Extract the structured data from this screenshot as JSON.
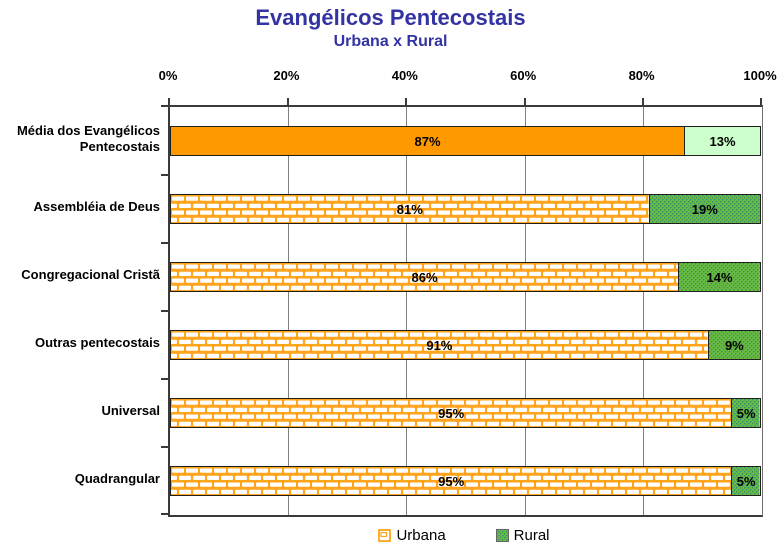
{
  "title": "Evangélicos Pentecostais",
  "subtitle": "Urbana x Rural",
  "colors": {
    "title": "#3333A3",
    "urbana_solid": "#FF9900",
    "urbana_brick_mortar": "#FFA41C",
    "urbana_brick_fill": "#FFFFFF",
    "rural_light": "#CCFFCC",
    "rural_green": "#6CBB3C",
    "rural_dot": "#2E8F79",
    "gridline": "#808080",
    "axis": "#3A3A3A"
  },
  "chart_data": {
    "type": "bar",
    "orientation": "horizontal",
    "stacked": true,
    "title": "Evangélicos Pentecostais",
    "subtitle": "Urbana x Rural",
    "categories": [
      "Média dos Evangélicos Pentecostais",
      "Assembléia de Deus",
      "Congregacional Cristã",
      "Outras pentecostais",
      "Universal",
      "Quadrangular"
    ],
    "series": [
      {
        "name": "Urbana",
        "values": [
          87,
          81,
          86,
          91,
          95,
          95
        ]
      },
      {
        "name": "Rural",
        "values": [
          13,
          19,
          14,
          9,
          5,
          5
        ]
      }
    ],
    "x_ticks": [
      "0%",
      "20%",
      "40%",
      "60%",
      "80%",
      "100%"
    ],
    "xlim": [
      0,
      100
    ],
    "grid": "vertical-on",
    "legend_position": "bottom",
    "value_label_suffix": "%"
  }
}
